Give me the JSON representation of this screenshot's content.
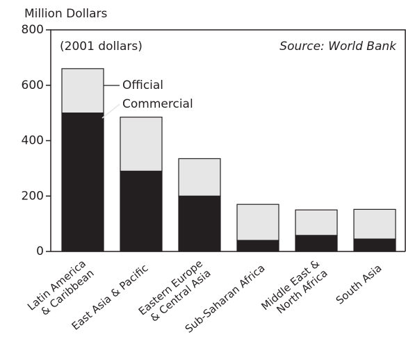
{
  "chart_data": {
    "type": "stacked-bar",
    "y_label": "Million Dollars",
    "subtitle": "(2001 dollars)",
    "source": "Source: World Bank",
    "categories": [
      "Latin America\n& Caribbean",
      "East Asia & Pacific",
      "Eastern Europe\n& Central Asia",
      "Sub-Saharan Africa",
      "Middle East &\nNorth Africa",
      "South Asia"
    ],
    "series": [
      {
        "name": "Commercial",
        "color": "#231f20",
        "values": [
          500,
          290,
          200,
          40,
          58,
          45
        ]
      },
      {
        "name": "Official",
        "color": "#e6e6e6",
        "values": [
          160,
          195,
          135,
          130,
          92,
          107
        ]
      }
    ],
    "ylim": [
      0,
      800
    ],
    "yticks": [
      0,
      200,
      400,
      600,
      800
    ]
  }
}
